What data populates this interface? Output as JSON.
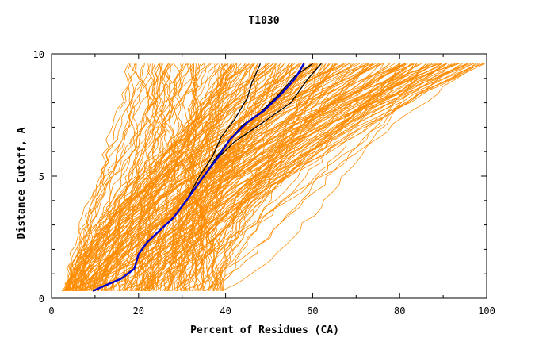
{
  "chart_data": {
    "type": "line",
    "title": "T1030",
    "xlabel": "Percent of Residues (CA)",
    "ylabel": "Distance Cutoff, A",
    "xlim": [
      0,
      100
    ],
    "ylim": [
      0,
      10
    ],
    "x_ticks": [
      "0",
      "20",
      "40",
      "60",
      "80",
      "100"
    ],
    "y_ticks": [
      "0",
      "5",
      "10"
    ],
    "grid": false,
    "legend": "none",
    "colors": {
      "models": "#ff8c00",
      "highlight_blue": "#0000cc",
      "highlight_black": "#000000",
      "axis": "#000000"
    },
    "highlight_series": [
      {
        "color": "#0000cc",
        "points": [
          [
            9.5,
            0.3
          ],
          [
            12,
            0.5
          ],
          [
            16,
            0.8
          ],
          [
            19,
            1.2
          ],
          [
            20,
            1.8
          ],
          [
            22,
            2.3
          ],
          [
            25,
            2.8
          ],
          [
            28,
            3.3
          ],
          [
            31,
            4.0
          ],
          [
            35,
            5.0
          ],
          [
            38,
            5.7
          ],
          [
            41,
            6.5
          ],
          [
            45,
            7.2
          ],
          [
            49,
            7.7
          ],
          [
            53,
            8.4
          ],
          [
            56,
            9.0
          ],
          [
            58,
            9.6
          ]
        ]
      },
      {
        "color": "#000000",
        "points": [
          [
            9.5,
            0.3
          ],
          [
            12,
            0.5
          ],
          [
            16,
            0.8
          ],
          [
            19,
            1.2
          ],
          [
            20,
            1.8
          ],
          [
            22,
            2.3
          ],
          [
            25,
            2.8
          ],
          [
            28,
            3.3
          ],
          [
            31,
            4.0
          ],
          [
            34,
            5.0
          ],
          [
            37,
            5.8
          ],
          [
            39,
            6.6
          ],
          [
            42,
            7.3
          ],
          [
            45,
            8.2
          ],
          [
            46,
            8.8
          ],
          [
            48,
            9.6
          ]
        ]
      },
      {
        "color": "#000000",
        "points": [
          [
            9.5,
            0.3
          ],
          [
            12,
            0.5
          ],
          [
            16,
            0.8
          ],
          [
            19,
            1.2
          ],
          [
            20,
            1.8
          ],
          [
            22,
            2.3
          ],
          [
            25,
            2.8
          ],
          [
            28,
            3.3
          ],
          [
            31,
            4.0
          ],
          [
            35,
            5.0
          ],
          [
            38,
            5.7
          ],
          [
            42,
            6.4
          ],
          [
            47,
            7.0
          ],
          [
            51,
            7.5
          ],
          [
            55,
            8.0
          ],
          [
            59,
            9.0
          ],
          [
            62,
            9.6
          ]
        ]
      },
      {
        "color": "#000000",
        "points": [
          [
            9.5,
            0.3
          ],
          [
            12,
            0.5
          ],
          [
            16,
            0.8
          ],
          [
            19,
            1.2
          ],
          [
            20,
            1.8
          ],
          [
            22,
            2.3
          ],
          [
            25,
            2.8
          ],
          [
            28,
            3.3
          ],
          [
            31,
            4.0
          ],
          [
            35,
            5.0
          ],
          [
            38,
            5.8
          ],
          [
            41,
            6.5
          ],
          [
            44,
            7.1
          ],
          [
            48,
            7.6
          ],
          [
            52,
            8.3
          ],
          [
            56,
            9.1
          ],
          [
            60,
            9.6
          ]
        ]
      }
    ],
    "model_series_family": {
      "count": 220,
      "y_max": 9.6,
      "note_range_x_at_top": [
        17,
        100
      ],
      "note_range_x_at_bottom": [
        3,
        40
      ]
    }
  }
}
